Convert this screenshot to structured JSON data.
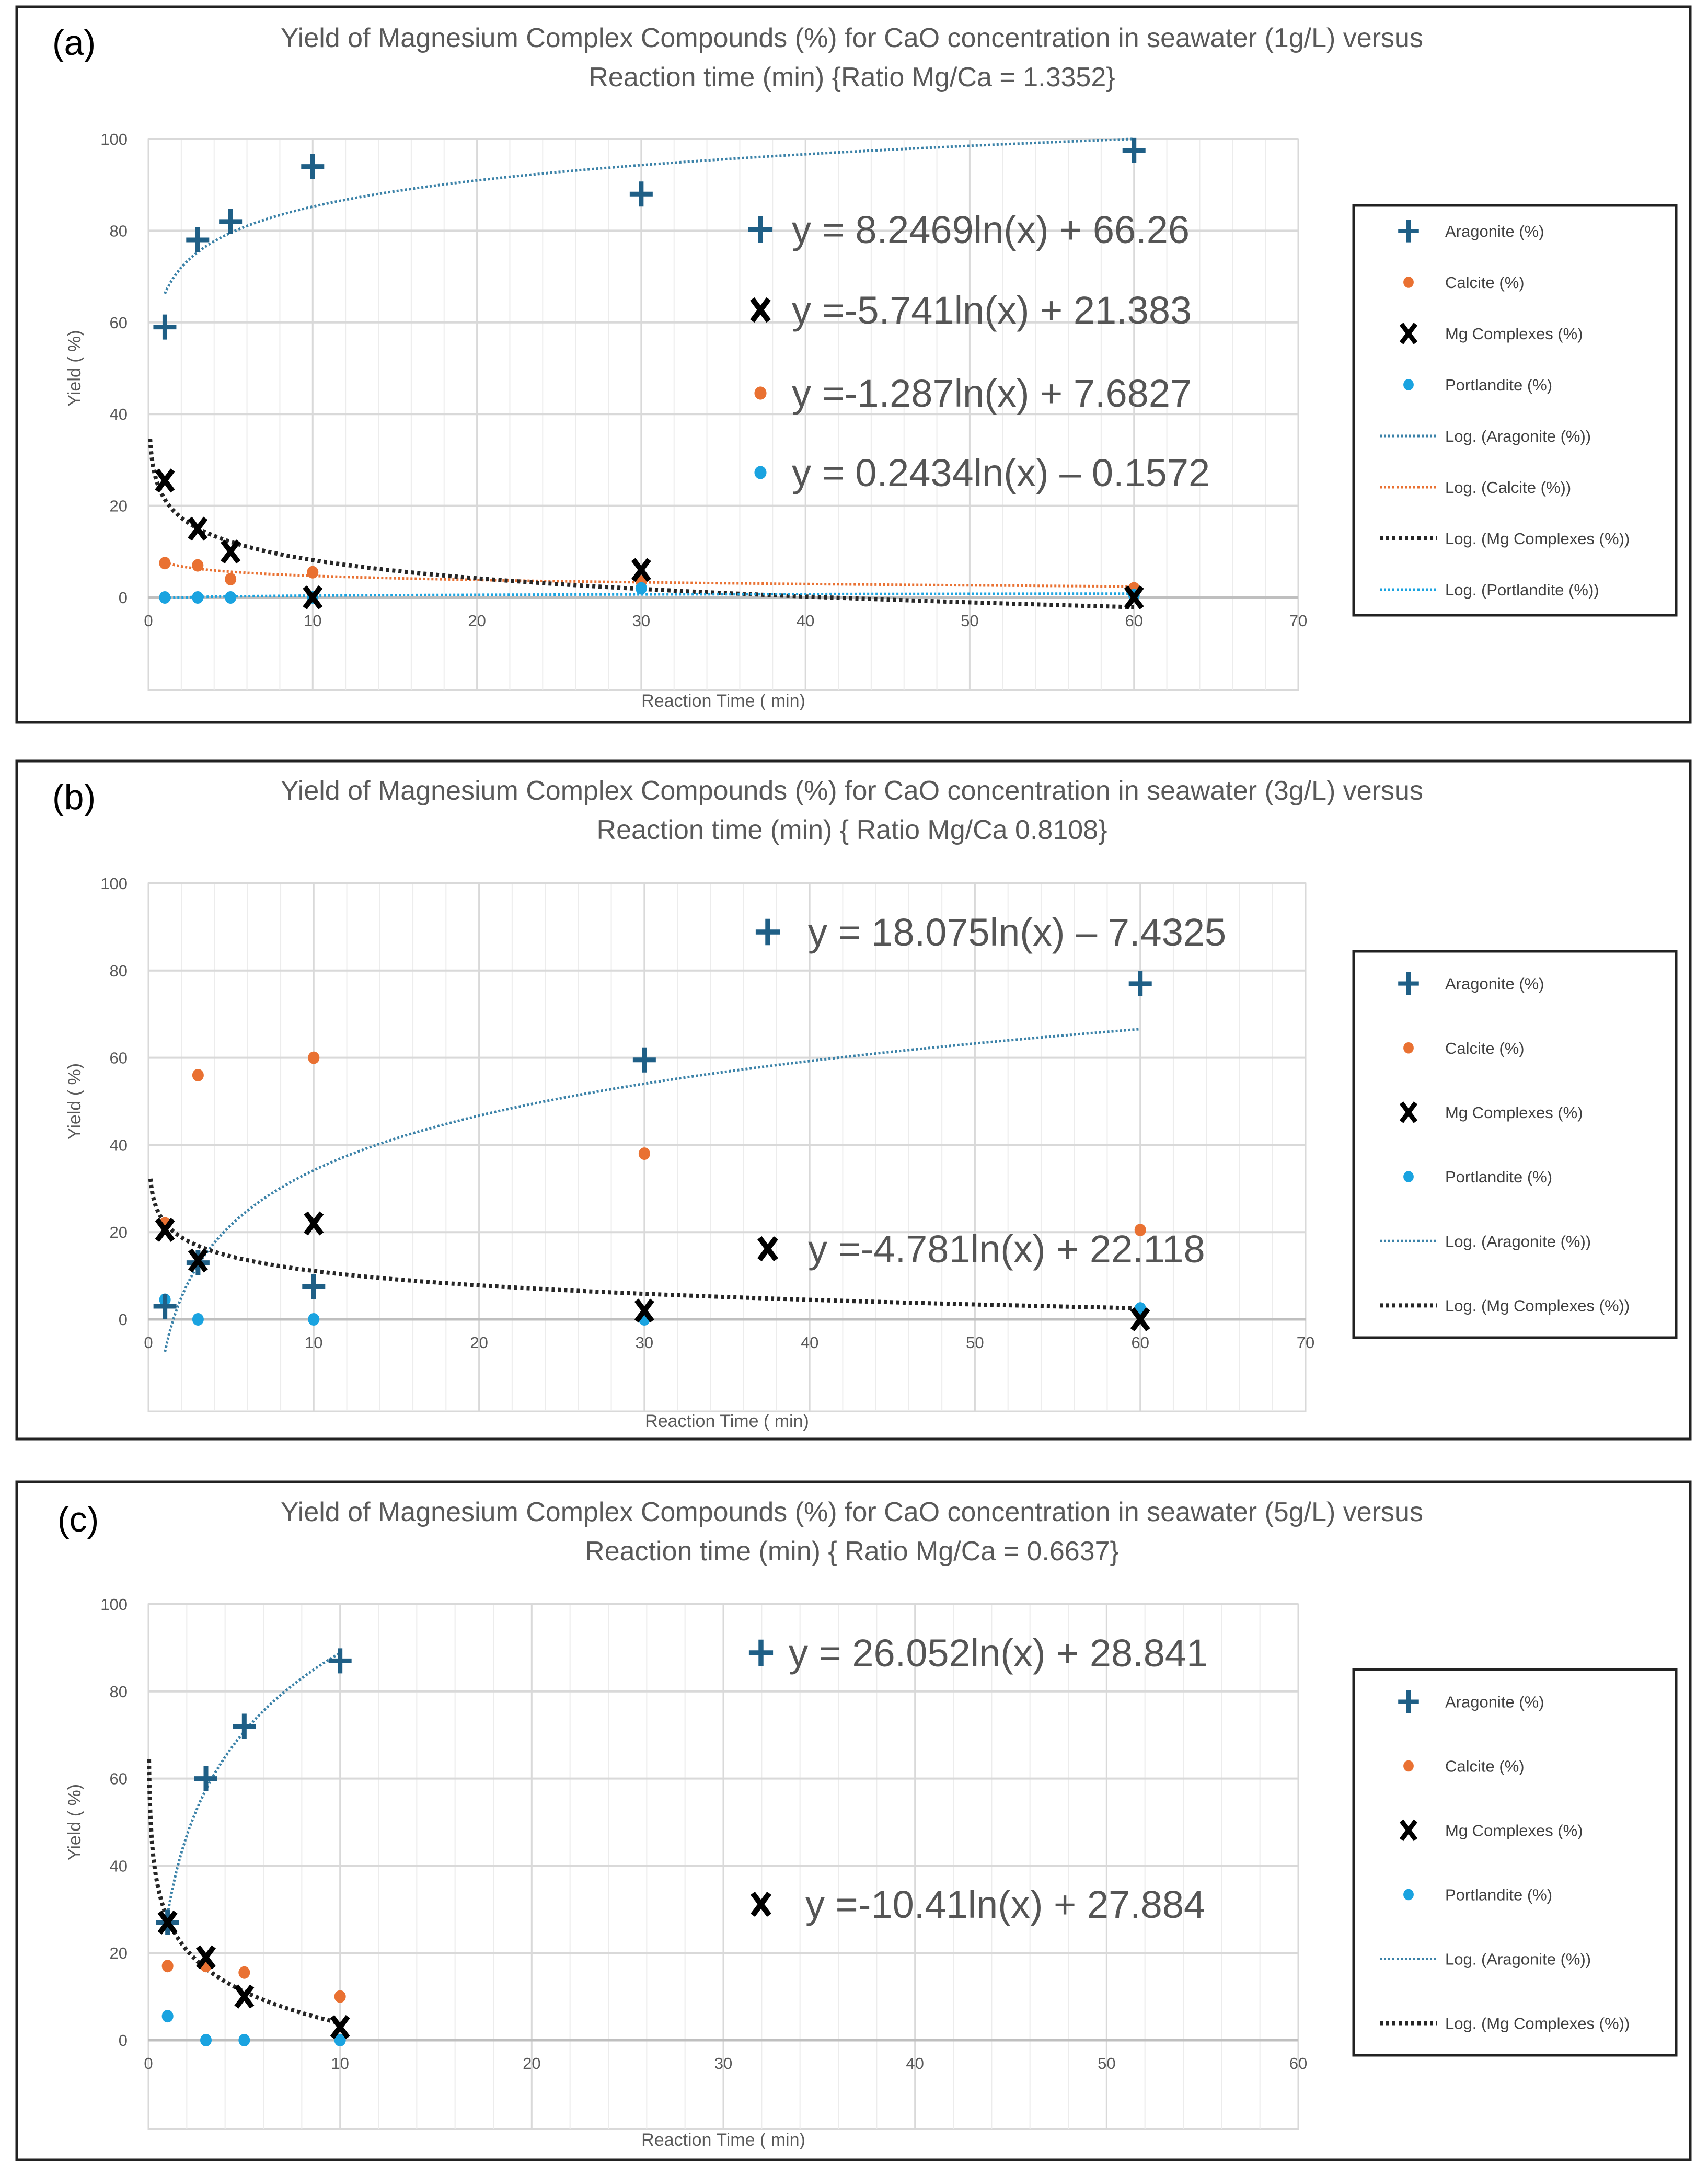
{
  "chart_data": [
    {
      "type": "scatter",
      "panel_label": "(a)",
      "title_line1": "Yield of Magnesium Complex Compounds (%)  for CaO concentration in seawater (1g/L) versus",
      "title_line2": "Reaction time (min) {Ratio Mg/Ca = 1.3352}",
      "xlabel": "Reaction Time ( min)",
      "ylabel": "Yield ( %)",
      "xlim": [
        0,
        70
      ],
      "ylim": [
        -20,
        100
      ],
      "xticks": [
        0,
        10,
        20,
        30,
        40,
        50,
        60,
        70
      ],
      "yticks": [
        0,
        20,
        40,
        60,
        80,
        100
      ],
      "grid": true,
      "legend_position": "right",
      "series": [
        {
          "name": "Aragonite (%)",
          "marker": "plus",
          "color": "#1f5f86",
          "x": [
            1,
            3,
            5,
            10,
            30,
            60
          ],
          "y": [
            59,
            78,
            82,
            94,
            88,
            97.5
          ]
        },
        {
          "name": "Calcite (%)",
          "marker": "circle",
          "color": "#e97132",
          "x": [
            1,
            3,
            5,
            10,
            30,
            60
          ],
          "y": [
            7.5,
            7,
            4,
            5.5,
            3.5,
            2
          ]
        },
        {
          "name": "Mg Complexes (%)",
          "marker": "x",
          "color": "#000000",
          "x": [
            1,
            3,
            5,
            10,
            30,
            60
          ],
          "y": [
            25.5,
            15,
            10,
            0,
            6,
            0
          ]
        },
        {
          "name": "Portlandite (%)",
          "marker": "circle",
          "color": "#1aa3e0",
          "x": [
            1,
            3,
            5,
            10,
            30,
            60
          ],
          "y": [
            0,
            0,
            0,
            0,
            2,
            0.5
          ]
        }
      ],
      "trendlines": [
        {
          "name": "Log. (Aragonite (%))",
          "a": 8.2469,
          "b": 66.26,
          "x_from": 1,
          "x_to": 60,
          "color": "#3b82a8",
          "equation": "y = 8.2469ln(x) + 66.26",
          "eq_marker": "plus",
          "eq_color": "#1f5f86"
        },
        {
          "name": "Log. (Calcite (%))",
          "a": -1.287,
          "b": 7.6827,
          "x_from": 1,
          "x_to": 60,
          "color": "#e97132",
          "equation": "y =-1.287ln(x) + 7.6827",
          "eq_marker": "circle",
          "eq_color": "#e97132"
        },
        {
          "name": "Log. (Mg Complexes (%))",
          "a": -5.741,
          "b": 21.383,
          "x_from": 0.1,
          "x_to": 60,
          "color": "#262626",
          "equation": "y =-5.741ln(x) + 21.383",
          "eq_marker": "x",
          "eq_color": "#000000"
        },
        {
          "name": "Log. (Portlandite (%))",
          "a": 0.2434,
          "b": -0.1572,
          "x_from": 1,
          "x_to": 60,
          "color": "#1aa3e0",
          "equation": "y = 0.2434ln(x) – 0.1572",
          "eq_marker": "circle",
          "eq_color": "#1aa3e0"
        }
      ],
      "equation_order": [
        0,
        2,
        1,
        3
      ],
      "legend_trend_order": [
        0,
        1,
        2,
        3
      ]
    },
    {
      "type": "scatter",
      "panel_label": "(b)",
      "title_line1": "Yield of Magnesium Complex Compounds (%)  for CaO concentration in seawater (3g/L) versus",
      "title_line2": "Reaction time (min) { Ratio Mg/Ca 0.8108}",
      "xlabel": "Reaction Time ( min)",
      "ylabel": "Yield ( %)",
      "xlim": [
        0,
        70
      ],
      "ylim": [
        -20,
        100
      ],
      "xticks": [
        0,
        10,
        20,
        30,
        40,
        50,
        60,
        70
      ],
      "yticks": [
        0,
        20,
        40,
        60,
        80,
        100
      ],
      "grid": true,
      "legend_position": "right",
      "series": [
        {
          "name": "Aragonite (%)",
          "marker": "plus",
          "color": "#1f5f86",
          "x": [
            1,
            3,
            10,
            30,
            60
          ],
          "y": [
            3,
            13,
            7.5,
            59.5,
            77
          ]
        },
        {
          "name": "Calcite (%)",
          "marker": "circle",
          "color": "#e97132",
          "x": [
            1,
            3,
            10,
            30,
            60
          ],
          "y": [
            22,
            56,
            60,
            38,
            20.5
          ]
        },
        {
          "name": "Mg Complexes (%)",
          "marker": "x",
          "color": "#000000",
          "x": [
            1,
            3,
            10,
            30,
            60
          ],
          "y": [
            20.5,
            13.5,
            22,
            2,
            0
          ]
        },
        {
          "name": "Portlandite (%)",
          "marker": "circle",
          "color": "#1aa3e0",
          "x": [
            1,
            3,
            10,
            30,
            60
          ],
          "y": [
            4.5,
            0,
            0,
            0,
            2.5
          ]
        }
      ],
      "trendlines": [
        {
          "name": "Log. (Aragonite (%))",
          "a": 18.075,
          "b": -7.4325,
          "x_from": 1,
          "x_to": 60,
          "color": "#3b82a8",
          "equation": "y = 18.075ln(x) – 7.4325",
          "eq_marker": "plus",
          "eq_color": "#1f5f86"
        },
        {
          "name": "Log. (Mg Complexes (%))",
          "a": -4.781,
          "b": 22.118,
          "x_from": 0.12,
          "x_to": 60,
          "color": "#262626",
          "equation": "y =-4.781ln(x) + 22.118",
          "eq_marker": "x",
          "eq_color": "#000000"
        }
      ],
      "equation_order": [
        0,
        1
      ],
      "legend_trend_order": [
        0,
        1
      ]
    },
    {
      "type": "scatter",
      "panel_label": "(c)",
      "title_line1": "Yield of Magnesium Complex Compounds (%)  for CaO concentration in seawater (5g/L) versus",
      "title_line2": "Reaction time (min) { Ratio Mg/Ca = 0.6637}",
      "xlabel": "Reaction Time ( min)",
      "ylabel": "Yield ( %)",
      "xlim": [
        0,
        60
      ],
      "ylim": [
        -20,
        100
      ],
      "xticks": [
        0,
        10,
        20,
        30,
        40,
        50,
        60
      ],
      "yticks": [
        0,
        20,
        40,
        60,
        80,
        100
      ],
      "grid": true,
      "legend_position": "right",
      "series": [
        {
          "name": "Aragonite (%)",
          "marker": "plus",
          "color": "#1f5f86",
          "x": [
            1,
            3,
            5,
            10
          ],
          "y": [
            27,
            60,
            72,
            87
          ]
        },
        {
          "name": "Calcite (%)",
          "marker": "circle",
          "color": "#e97132",
          "x": [
            1,
            3,
            5,
            10
          ],
          "y": [
            17,
            17,
            15.5,
            10
          ]
        },
        {
          "name": "Mg Complexes (%)",
          "marker": "x",
          "color": "#000000",
          "x": [
            1,
            3,
            5,
            10
          ],
          "y": [
            27,
            19,
            10,
            3
          ]
        },
        {
          "name": "Portlandite (%)",
          "marker": "circle",
          "color": "#1aa3e0",
          "x": [
            1,
            3,
            5,
            10
          ],
          "y": [
            5.5,
            0,
            0,
            0
          ]
        }
      ],
      "trendlines": [
        {
          "name": "Log. (Aragonite (%))",
          "a": 26.052,
          "b": 28.841,
          "x_from": 1,
          "x_to": 10,
          "color": "#3b82a8",
          "equation": "y = 26.052ln(x) + 28.841",
          "eq_marker": "plus",
          "eq_color": "#1f5f86"
        },
        {
          "name": "Log. (Mg Complexes (%))",
          "a": -10.41,
          "b": 27.884,
          "x_from": 0.03,
          "x_to": 10,
          "color": "#262626",
          "equation": "y =-10.41ln(x) + 27.884",
          "eq_marker": "x",
          "eq_color": "#000000"
        }
      ],
      "equation_order": [
        0,
        1
      ],
      "legend_trend_order": [
        0,
        1
      ]
    }
  ]
}
